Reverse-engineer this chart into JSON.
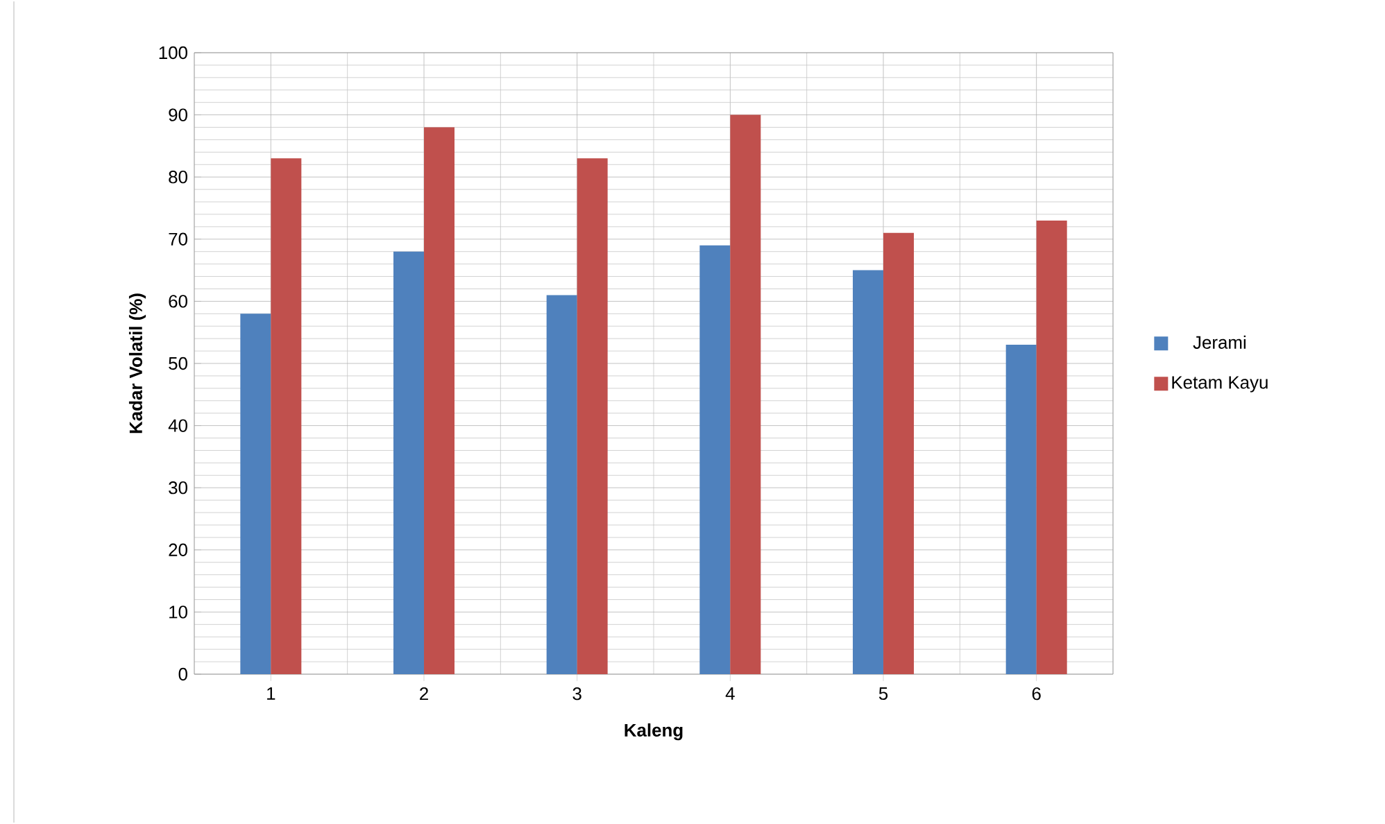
{
  "chart_data": {
    "type": "bar",
    "xlabel": "Kaleng",
    "ylabel": "Kadar Volatil (%)",
    "categories": [
      "1",
      "2",
      "3",
      "4",
      "5",
      "6"
    ],
    "series": [
      {
        "name": "Jerami",
        "color": "#4f81bd",
        "values": [
          58,
          68,
          61,
          69,
          65,
          53
        ]
      },
      {
        "name": "Ketam Kayu",
        "color": "#c0504d",
        "values": [
          83,
          88,
          83,
          90,
          71,
          73
        ]
      }
    ],
    "ylim": [
      0,
      100
    ],
    "yticks": [
      0,
      10,
      20,
      30,
      40,
      50,
      60,
      70,
      80,
      90,
      100
    ],
    "grid": true,
    "legend": "right"
  }
}
